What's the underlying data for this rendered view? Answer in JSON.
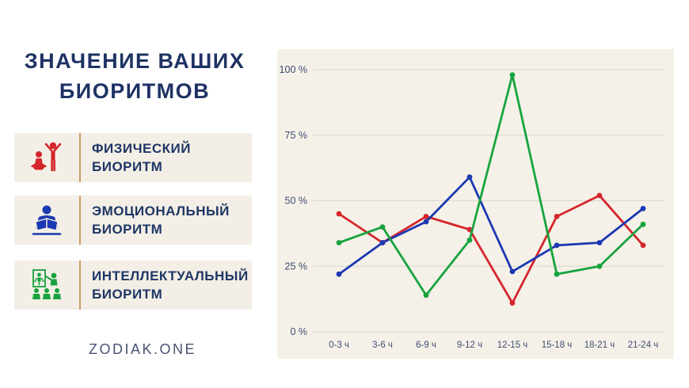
{
  "page": {
    "title_line1": "ЗНАЧЕНИЕ ВАШИХ",
    "title_line2": "БИОРИТМОВ",
    "brand": "ZODIAK.ONE"
  },
  "legend": {
    "items": [
      {
        "id": "physical",
        "label_line1": "ФИЗИЧЕСКИЙ",
        "label_line2": "БИОРИТМ",
        "color": "#d4262b",
        "icon": "exercise-figures-icon"
      },
      {
        "id": "emotional",
        "label_line1": "ЭМОЦИОНАЛЬНЫЙ",
        "label_line2": "БИОРИТМ",
        "color": "#1c38b2",
        "icon": "reading-person-icon"
      },
      {
        "id": "intellectual",
        "label_line1": "ИНТЕЛЛЕКТУАЛЬНЫЙ",
        "label_line2": "БИОРИТМ",
        "color": "#17a33e",
        "icon": "presentation-group-icon"
      }
    ]
  },
  "chart_data": {
    "type": "line",
    "categories": [
      "0-3 ч",
      "3-6 ч",
      "6-9 ч",
      "9-12 ч",
      "12-15 ч",
      "15-18 ч",
      "18-21 ч",
      "21-24 ч"
    ],
    "series": [
      {
        "name": "Физический биоритм",
        "color": "#d4262b",
        "values": [
          45,
          34,
          44,
          39,
          11,
          44,
          52,
          33
        ]
      },
      {
        "name": "Эмоциональный биоритм",
        "color": "#1c38b2",
        "values": [
          22,
          34,
          42,
          59,
          23,
          33,
          34,
          47
        ]
      },
      {
        "name": "Интеллектуальный биоритм",
        "color": "#17a33e",
        "values": [
          34,
          40,
          14,
          35,
          98,
          22,
          25,
          41
        ]
      }
    ],
    "y_ticks": [
      {
        "value": 0,
        "label": "0 %"
      },
      {
        "value": 25,
        "label": "25 %"
      },
      {
        "value": 50,
        "label": "50 %"
      },
      {
        "value": 75,
        "label": "75 %"
      },
      {
        "value": 100,
        "label": "100 %"
      }
    ],
    "ylim": [
      0,
      100
    ],
    "xlabel": "",
    "ylabel": "",
    "grid": true,
    "legend_position": "left-panel",
    "panel_background": "#f5f1e8",
    "gridline_color": "#dfdbce",
    "axis_text_color": "#3f4c73"
  }
}
